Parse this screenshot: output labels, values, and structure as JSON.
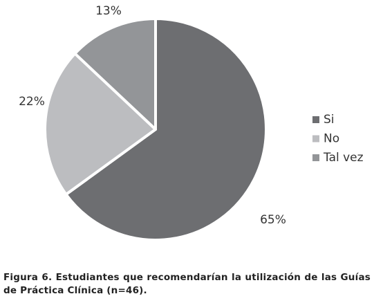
{
  "chart_data": {
    "type": "pie",
    "categories": [
      "Si",
      "No",
      "Tal vez"
    ],
    "values": [
      65,
      22,
      13
    ],
    "value_labels": [
      "65%",
      "22%",
      "13%"
    ],
    "colors": [
      "#6d6e71",
      "#bcbdc0",
      "#939598"
    ],
    "legend": "right"
  },
  "caption": {
    "label": "Figura 6.",
    "text": "Estudiantes que recomendarían la utilización de las Guías de Práctica Clínica (n=46)."
  }
}
